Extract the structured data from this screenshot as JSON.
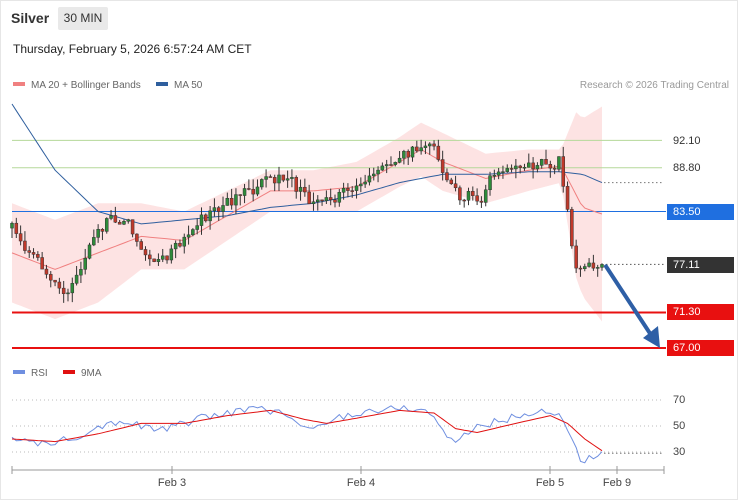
{
  "header": {
    "title": "Silver",
    "period": "30 MIN",
    "timestamp": "Thursday, February 5, 2026 6:57:24 AM CET"
  },
  "legend": {
    "ma20": "MA 20 + Bollinger Bands",
    "ma50": "MA 50",
    "credit": "Research © 2026 Trading Central"
  },
  "rsi_legend": {
    "rsi": "RSI",
    "ma9": "9MA"
  },
  "colors": {
    "ma20": "#f08080",
    "ma50": "#2f5f9e",
    "bollinger_fill": "#fde3e3",
    "resistance_green": "#b5d89a",
    "pivot_blue": "#1f6fe0",
    "support_red": "#e81010",
    "last_price": "#333333",
    "rsi_line": "#6f8fe0",
    "rsi_ma": "#e01010",
    "arrow": "#2e5fa6"
  },
  "levels": {
    "r2": "92.10",
    "r1": "88.80",
    "pivot": "83.50",
    "last": "77.11",
    "s1": "71.30",
    "s2": "67.00"
  },
  "xaxis": {
    "labels": [
      "Feb 3",
      "Feb 4",
      "Feb 5",
      "Feb 9"
    ]
  },
  "rsi_axis": {
    "ticks": [
      "70",
      "50",
      "30"
    ]
  },
  "chart_data": {
    "type": "candlestick",
    "price_levels": [
      92.1,
      88.8,
      83.5,
      77.11,
      71.3,
      67.0
    ],
    "last_price": 77.11,
    "forecast": {
      "from": 77.11,
      "to": 67.0
    },
    "close_path": [
      [
        0,
        81.5
      ],
      [
        8,
        78.5
      ],
      [
        16,
        76.0
      ],
      [
        24,
        73.8
      ],
      [
        30,
        75.5
      ],
      [
        38,
        80.0
      ],
      [
        46,
        83.0
      ],
      [
        54,
        82.0
      ],
      [
        60,
        79.5
      ],
      [
        66,
        77.8
      ],
      [
        72,
        78.3
      ],
      [
        80,
        80.5
      ],
      [
        88,
        82.5
      ],
      [
        96,
        84.0
      ],
      [
        104,
        85.0
      ],
      [
        110,
        86.0
      ],
      [
        116,
        86.8
      ],
      [
        122,
        87.5
      ],
      [
        128,
        87.8
      ],
      [
        134,
        86.0
      ],
      [
        140,
        84.3
      ],
      [
        146,
        84.6
      ],
      [
        150,
        85.3
      ],
      [
        156,
        86.0
      ],
      [
        162,
        86.8
      ],
      [
        168,
        87.8
      ],
      [
        174,
        89.0
      ],
      [
        180,
        90.0
      ],
      [
        186,
        91.0
      ],
      [
        192,
        92.0
      ],
      [
        196,
        91.0
      ],
      [
        202,
        87.5
      ],
      [
        208,
        85.0
      ],
      [
        214,
        85.8
      ],
      [
        218,
        84.8
      ],
      [
        222,
        87.5
      ],
      [
        226,
        88.3
      ],
      [
        232,
        88.8
      ],
      [
        238,
        89.0
      ],
      [
        244,
        89.3
      ],
      [
        250,
        89.0
      ],
      [
        254,
        89.5
      ],
      [
        258,
        84.0
      ],
      [
        262,
        76.0
      ],
      [
        266,
        77.2
      ],
      [
        270,
        77.0
      ],
      [
        274,
        77.11
      ]
    ],
    "band_mid": [
      [
        0,
        78.5
      ],
      [
        20,
        76.5
      ],
      [
        40,
        78.5
      ],
      [
        60,
        80.5
      ],
      [
        80,
        80.0
      ],
      [
        100,
        83.0
      ],
      [
        120,
        86.0
      ],
      [
        140,
        86.0
      ],
      [
        160,
        86.5
      ],
      [
        180,
        89.5
      ],
      [
        190,
        91.0
      ],
      [
        200,
        89.5
      ],
      [
        220,
        87.5
      ],
      [
        240,
        88.5
      ],
      [
        255,
        89.0
      ],
      [
        265,
        84.0
      ],
      [
        274,
        83.2
      ]
    ],
    "band_width": [
      [
        0,
        6.0
      ],
      [
        40,
        6.0
      ],
      [
        60,
        4.0
      ],
      [
        80,
        3.5
      ],
      [
        100,
        3.0
      ],
      [
        120,
        2.5
      ],
      [
        140,
        2.5
      ],
      [
        160,
        3.0
      ],
      [
        180,
        3.0
      ],
      [
        200,
        3.5
      ],
      [
        220,
        3.0
      ],
      [
        240,
        2.5
      ],
      [
        255,
        2.0
      ],
      [
        262,
        10.0
      ],
      [
        274,
        13.0
      ]
    ],
    "ma50": [
      [
        0,
        96.5
      ],
      [
        20,
        88.5
      ],
      [
        40,
        83.5
      ],
      [
        60,
        82.0
      ],
      [
        80,
        82.5
      ],
      [
        100,
        83.0
      ],
      [
        120,
        84.0
      ],
      [
        140,
        84.5
      ],
      [
        160,
        85.5
      ],
      [
        180,
        87.0
      ],
      [
        200,
        88.0
      ],
      [
        220,
        88.0
      ],
      [
        240,
        88.3
      ],
      [
        255,
        88.3
      ],
      [
        265,
        88.0
      ],
      [
        274,
        87.0
      ]
    ],
    "rsi": {
      "ylim": [
        20,
        80
      ],
      "ticks": [
        70,
        50,
        30
      ],
      "rsi": [
        [
          0,
          40
        ],
        [
          10,
          36
        ],
        [
          20,
          38
        ],
        [
          30,
          42
        ],
        [
          40,
          50
        ],
        [
          50,
          54
        ],
        [
          60,
          50
        ],
        [
          70,
          47
        ],
        [
          80,
          52
        ],
        [
          90,
          57
        ],
        [
          100,
          60
        ],
        [
          110,
          63
        ],
        [
          120,
          62
        ],
        [
          128,
          58
        ],
        [
          136,
          48
        ],
        [
          140,
          47
        ],
        [
          146,
          52
        ],
        [
          150,
          56
        ],
        [
          160,
          60
        ],
        [
          170,
          62
        ],
        [
          180,
          64
        ],
        [
          190,
          63
        ],
        [
          196,
          57
        ],
        [
          202,
          42
        ],
        [
          206,
          38
        ],
        [
          212,
          46
        ],
        [
          218,
          50
        ],
        [
          226,
          54
        ],
        [
          234,
          57
        ],
        [
          242,
          60
        ],
        [
          250,
          62
        ],
        [
          256,
          55
        ],
        [
          260,
          40
        ],
        [
          264,
          24
        ],
        [
          268,
          25
        ],
        [
          272,
          27
        ],
        [
          274,
          29
        ]
      ],
      "ma9": [
        [
          0,
          40
        ],
        [
          20,
          38
        ],
        [
          40,
          44
        ],
        [
          60,
          52
        ],
        [
          80,
          52
        ],
        [
          100,
          58
        ],
        [
          120,
          62
        ],
        [
          136,
          55
        ],
        [
          146,
          52
        ],
        [
          160,
          56
        ],
        [
          180,
          62
        ],
        [
          196,
          60
        ],
        [
          206,
          48
        ],
        [
          216,
          45
        ],
        [
          234,
          52
        ],
        [
          250,
          58
        ],
        [
          258,
          52
        ],
        [
          266,
          40
        ],
        [
          274,
          31
        ]
      ]
    }
  }
}
